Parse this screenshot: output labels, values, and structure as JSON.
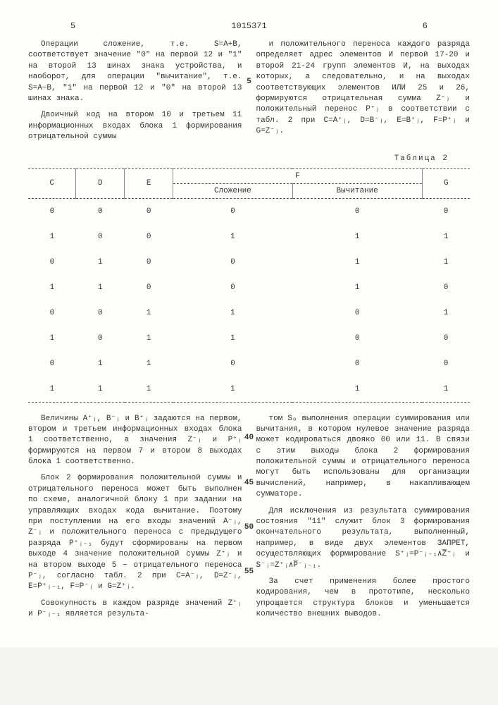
{
  "header": {
    "left_num": "5",
    "right_num": "6",
    "patent": "1015371"
  },
  "line_numbers": {
    "top": "5",
    "l40": "40",
    "l45": "45",
    "l50": "50",
    "l55": "55"
  },
  "top_left_col": {
    "p1": "Операции сложение, т.е. S=A+B, соответствует значение \"0\" на первой 12 и \"1\" на второй 13 шинах знака устройства, и наоборот, для операции \"вычитание\", т.е. S=A−B, \"1\" на первой 12 и \"0\" на второй 13 шинах знака.",
    "p2": "Двоичный код на втором 10 и третьем 11 информационных входах блока 1 формирования отрицательной суммы"
  },
  "top_right_col": {
    "p1": "и положительного переноса каждого разряда определяет адрес элементов И первой 17-20 и второй 21-24 групп элементов И, на выходах которых, а следовательно, и на выходах соответствующих элементов ИЛИ 25 и 26, формируются отрицательная сумма Z⁻ⱼ и положительный перенос P⁺ⱼ в соответствии с табл. 2 при C=A⁺ⱼ, D=B⁻ⱼ, E=B⁺ⱼ, F=P⁺ⱼ и G=Z⁻ⱼ."
  },
  "table": {
    "caption": "Таблица 2",
    "headers": {
      "c": "C",
      "d": "D",
      "e": "E",
      "f": "F",
      "f1": "Сложение",
      "f2": "Вычитание",
      "g": "G"
    },
    "rows": [
      [
        "0",
        "0",
        "0",
        "0",
        "0",
        "0"
      ],
      [
        "1",
        "0",
        "0",
        "1",
        "1",
        "1"
      ],
      [
        "0",
        "1",
        "0",
        "0",
        "1",
        "1"
      ],
      [
        "1",
        "1",
        "0",
        "0",
        "1",
        "0"
      ],
      [
        "0",
        "0",
        "1",
        "1",
        "0",
        "1"
      ],
      [
        "1",
        "0",
        "1",
        "1",
        "0",
        "0"
      ],
      [
        "0",
        "1",
        "1",
        "0",
        "0",
        "0"
      ],
      [
        "1",
        "1",
        "1",
        "1",
        "1",
        "1"
      ]
    ]
  },
  "bottom_left_col": {
    "p1": "Величины A⁺ⱼ, B⁻ⱼ и B⁺ⱼ задаются на первом, втором и третьем информационных входах блока 1 соответственно, а значения Z⁻ⱼ и P⁺ⱼ формируются на первом 7 и втором 8 выходах блока 1 соответственно.",
    "p2": "Блок 2 формирования положительной суммы и отрицательного переноса может быть выполнен по схеме, аналогичной блоку 1 при задании на управляющих входах кода вычитание. Поэтому при поступлении на его входы значений A⁻ⱼ, Z⁻ⱼ и положительного переноса с предыдущего разряда P⁺ⱼ₋₁ будут сформированы на первом выходе 4 значение положительной суммы Z⁺ⱼ и на втором выходе 5 − отрицательного переноса P⁻ⱼ, согласно табл. 2 при C=A⁻ⱼ, D=Z⁻ⱼ, E=P⁺ⱼ₋₁, F=P⁻ⱼ и G=Z⁺ⱼ.",
    "p3": "Совокупность в каждом разряде значений Z⁺ⱼ и P⁻ⱼ₋₁ является результа-"
  },
  "bottom_right_col": {
    "p1": "том Sₒ выполнения операции суммирования или вычитания, в котором нулевое значение разряда может кодироваться двояко 00 или 11. В связи с этим выходы блока 2 формирования положительной суммы и отрицательного переноса могут быть использованы для организации вычислений, например, в накапливающем сумматоре.",
    "p2": "Для исключения из результата суммирования состояния \"11\" служит блок 3 формирования окончательного результата, выполненный, например, в виде двух элементов ЗАПРЕТ, осуществляющих формирование S⁺ⱼ=P⁻ⱼ₋₁∧Z̅⁺ⱼ и S⁻ⱼ=Z⁺ⱼ∧P̅⁻ⱼ₋₁.",
    "p3": "За счет применения более простого кодирования, чем в прототипе, несколько упрощается структура блоков и уменьшается количество внешних выводов."
  }
}
